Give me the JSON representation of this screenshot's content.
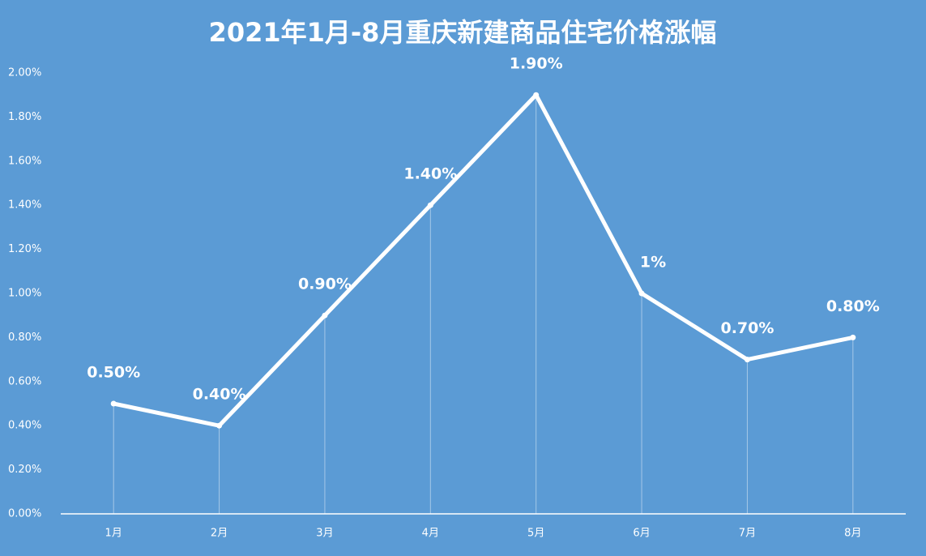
{
  "chart_data": {
    "type": "line",
    "title": "2021年1月-8月重庆新建商品住宅价格涨幅",
    "categories": [
      "1月",
      "2月",
      "3月",
      "4月",
      "5月",
      "6月",
      "7月",
      "8月"
    ],
    "series": [
      {
        "color": "#ffffff",
        "values": [
          0.5,
          0.4,
          0.9,
          1.4,
          1.9,
          1,
          0.7,
          0.8
        ],
        "value_labels": [
          "0.50%",
          "0.40%",
          "0.90%",
          "1.40%",
          "1.90%",
          "1%",
          "0.70%",
          "0.80%"
        ]
      }
    ],
    "ylim": [
      0,
      2
    ],
    "yticks": [
      {
        "value": 0,
        "label": "0.00%"
      },
      {
        "value": 0.2,
        "label": "0.20%"
      },
      {
        "value": 0.4,
        "label": "0.40%"
      },
      {
        "value": 0.6,
        "label": "0.60%"
      },
      {
        "value": 0.8,
        "label": "0.80%"
      },
      {
        "value": 1,
        "label": "1.00%"
      },
      {
        "value": 1.2,
        "label": "1.20%"
      },
      {
        "value": 1.4,
        "label": "1.40%"
      },
      {
        "value": 1.6,
        "label": "1.60%"
      },
      {
        "value": 1.8,
        "label": "1.80%"
      },
      {
        "value": 2,
        "label": "2.00%"
      }
    ],
    "grid": false,
    "drop_lines": true
  }
}
